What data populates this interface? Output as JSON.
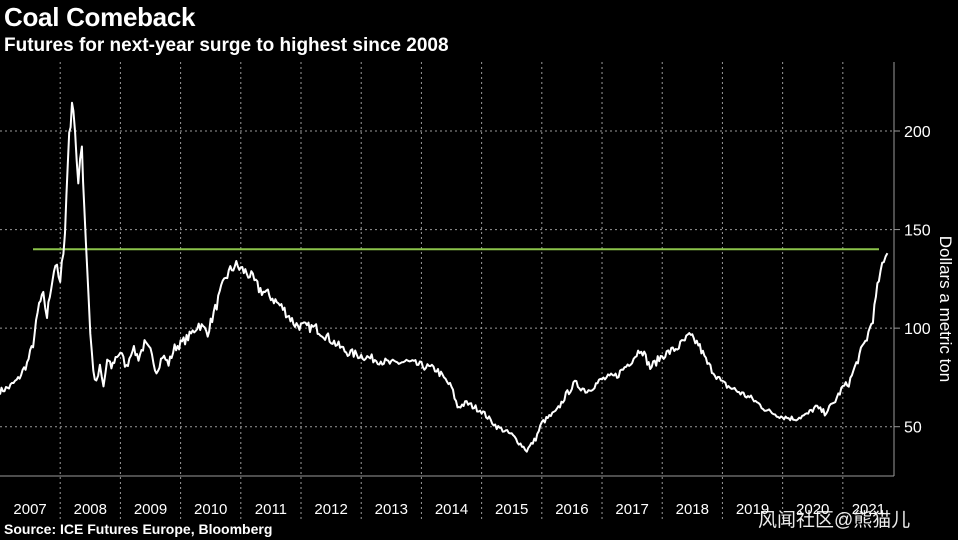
{
  "header": {
    "title": "Coal Comeback",
    "subtitle": "Futures for next-year surge to highest since 2008"
  },
  "footer": {
    "source": "Source: ICE Futures Europe, Bloomberg",
    "watermark": "风闻社区@熊猫儿"
  },
  "colors": {
    "background": "#000000",
    "series": "#ffffff",
    "reference_line": "#8bc34a",
    "grid": "#9a9a9a"
  },
  "chart_data": {
    "type": "line",
    "title": "Coal Comeback",
    "subtitle": "Futures for next-year surge to highest since 2008",
    "ylabel": "Dollars a metric ton",
    "xlabel": "",
    "ylim": [
      25,
      235
    ],
    "xlim": [
      2007.0,
      2021.85
    ],
    "yticks": [
      50,
      100,
      150,
      200
    ],
    "xticks": [
      "2007",
      "2008",
      "2009",
      "2010",
      "2011",
      "2012",
      "2013",
      "2014",
      "2015",
      "2016",
      "2017",
      "2018",
      "2019",
      "2020",
      "2021"
    ],
    "grid": true,
    "y_axis_side": "right",
    "reference_line": {
      "value": 140,
      "orientation": "horizontal"
    },
    "series": [
      {
        "x": [
          2007.0,
          2007.15,
          2007.3,
          2007.45,
          2007.55,
          2007.65,
          2007.72,
          2007.78,
          2007.85,
          2007.92,
          2008.0,
          2008.08,
          2008.15,
          2008.22,
          2008.3,
          2008.36,
          2008.4,
          2008.45,
          2008.5,
          2008.55,
          2008.6,
          2008.66,
          2008.72,
          2008.78,
          2008.85,
          2008.92,
          2009.0,
          2009.1,
          2009.2,
          2009.3,
          2009.4,
          2009.5,
          2009.6,
          2009.7,
          2009.8,
          2009.9,
          2010.0,
          2010.15,
          2010.3,
          2010.45,
          2010.6,
          2010.75,
          2010.9,
          2011.0,
          2011.15,
          2011.3,
          2011.5,
          2011.7,
          2011.9,
          2012.0,
          2012.25,
          2012.5,
          2012.75,
          2013.0,
          2013.25,
          2013.5,
          2013.75,
          2014.0,
          2014.25,
          2014.5,
          2014.6,
          2014.75,
          2015.0,
          2015.25,
          2015.5,
          2015.62,
          2015.75,
          2015.9,
          2016.0,
          2016.25,
          2016.4,
          2016.55,
          2016.75,
          2017.0,
          2017.25,
          2017.5,
          2017.65,
          2017.8,
          2018.0,
          2018.25,
          2018.45,
          2018.6,
          2018.75,
          2019.0,
          2019.25,
          2019.5,
          2019.75,
          2020.0,
          2020.2,
          2020.4,
          2020.55,
          2020.7,
          2020.85,
          2021.0,
          2021.1,
          2021.2,
          2021.3,
          2021.4,
          2021.5,
          2021.6,
          2021.68,
          2021.74
        ],
        "values": [
          68,
          70,
          74,
          82,
          92,
          112,
          116,
          106,
          122,
          133,
          122,
          150,
          200,
          215,
          172,
          192,
          162,
          130,
          98,
          78,
          72,
          80,
          70,
          84,
          80,
          85,
          88,
          80,
          90,
          85,
          92,
          88,
          78,
          86,
          82,
          90,
          92,
          96,
          102,
          98,
          112,
          126,
          132,
          130,
          127,
          120,
          116,
          110,
          102,
          101,
          100,
          94,
          88,
          86,
          84,
          82,
          83,
          81,
          79,
          70,
          60,
          62,
          58,
          50,
          46,
          42,
          38,
          44,
          52,
          58,
          66,
          72,
          68,
          74,
          76,
          84,
          90,
          80,
          86,
          90,
          96,
          92,
          82,
          72,
          68,
          64,
          58,
          55,
          54,
          56,
          60,
          57,
          62,
          70,
          72,
          80,
          88,
          95,
          105,
          125,
          133,
          138
        ]
      }
    ]
  }
}
